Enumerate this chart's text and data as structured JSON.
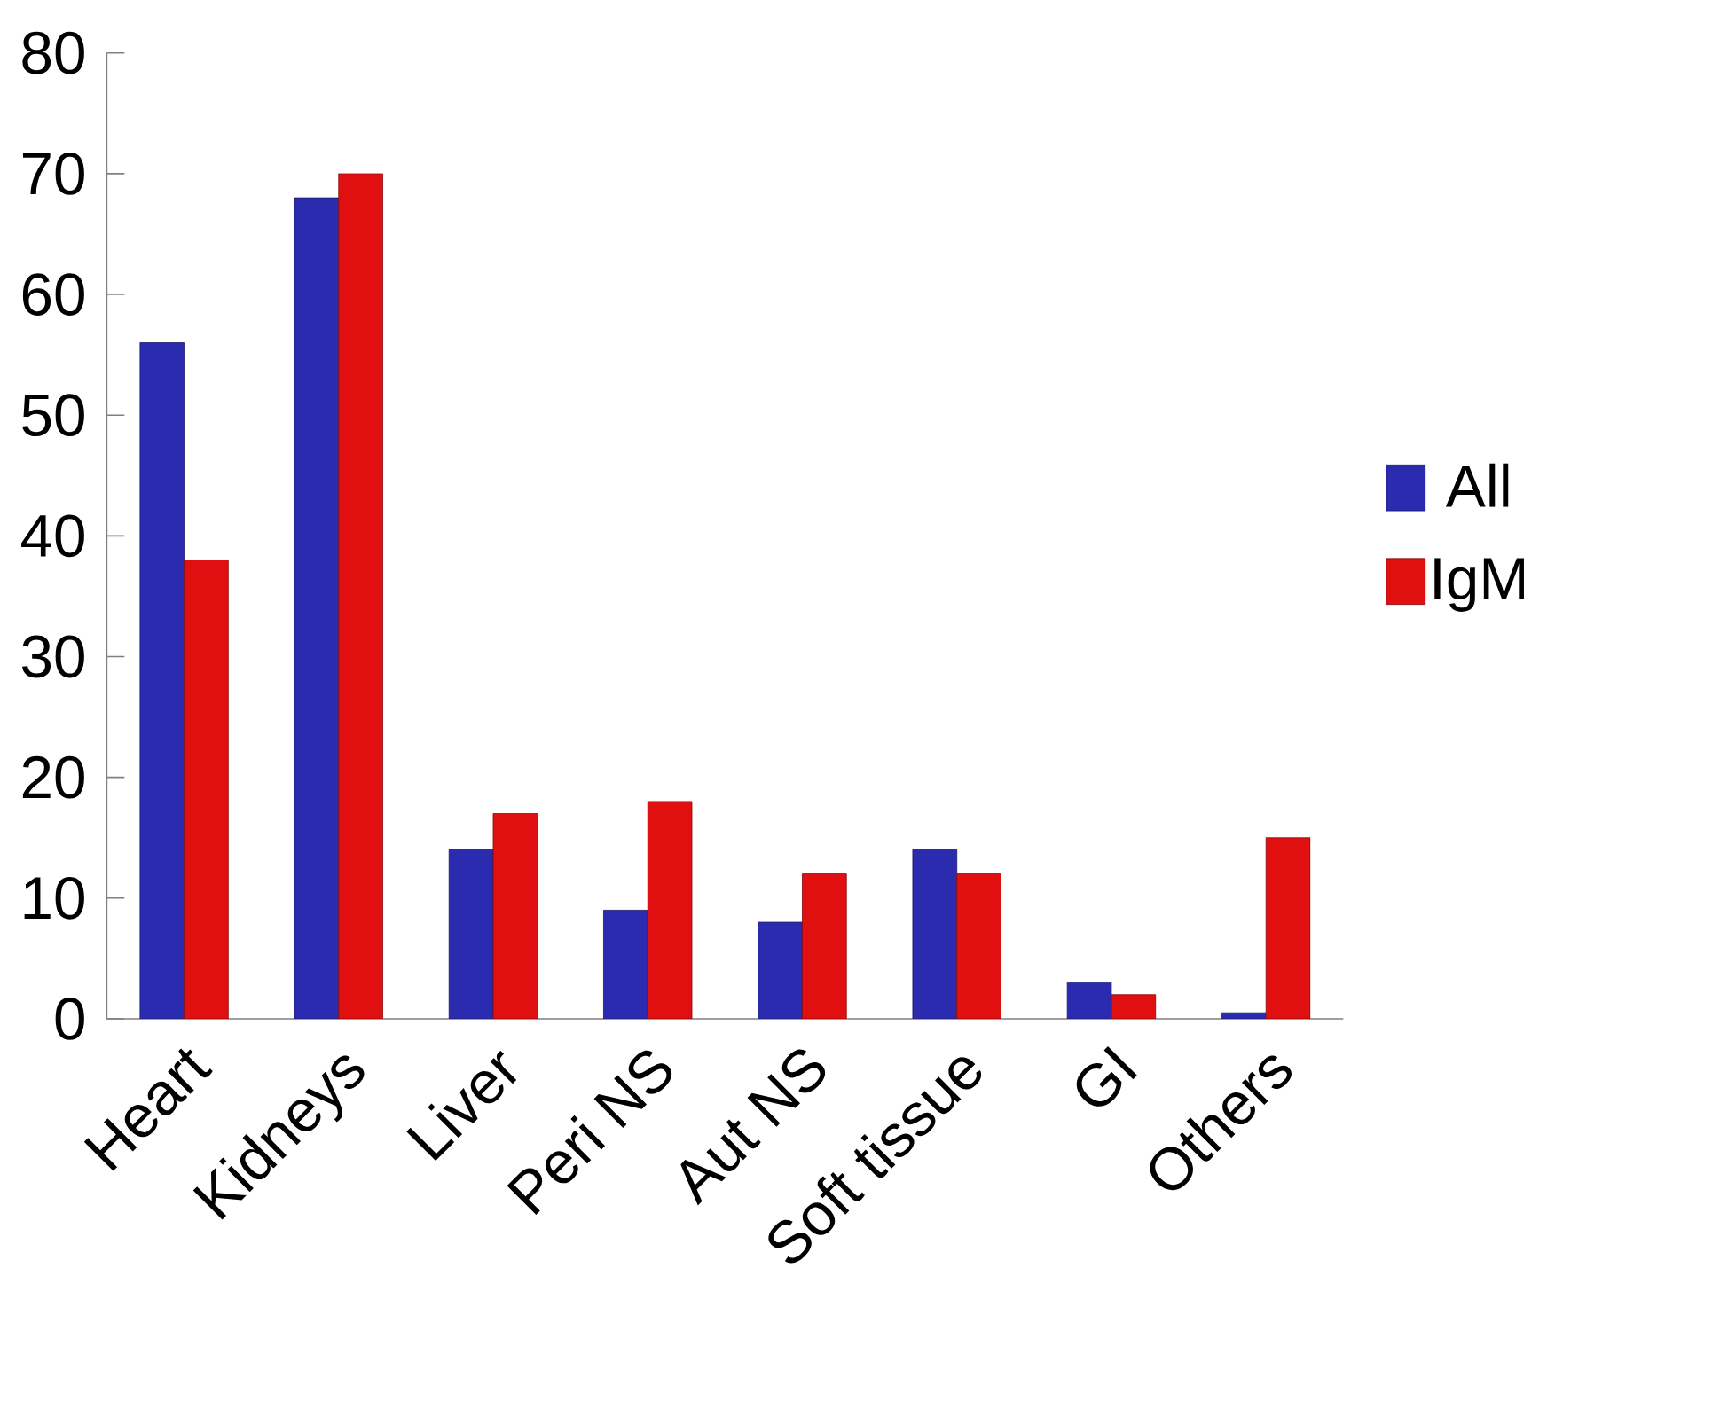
{
  "chart_data": {
    "type": "bar",
    "categories": [
      "Heart",
      "Kidneys",
      "Liver",
      "Peri NS",
      "Aut NS",
      "Soft tissue",
      "GI",
      "Others"
    ],
    "series": [
      {
        "name": "All",
        "color": "#2b2bb0",
        "values": [
          56,
          68,
          14,
          9,
          8,
          14,
          3,
          0.5
        ]
      },
      {
        "name": "IgM",
        "color": "#e01010",
        "values": [
          38,
          70,
          17,
          18,
          12,
          12,
          2,
          15
        ]
      }
    ],
    "ylim": [
      0,
      80
    ],
    "yticks": [
      0,
      10,
      20,
      30,
      40,
      50,
      60,
      70,
      80
    ],
    "grid": false,
    "legend": "right"
  }
}
